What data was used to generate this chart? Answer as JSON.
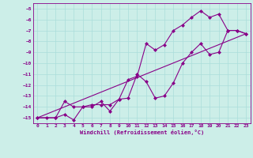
{
  "xlabel": "Windchill (Refroidissement éolien,°C)",
  "bg_color": "#cceee8",
  "grid_color": "#aaddda",
  "line_color": "#880088",
  "xlim": [
    -0.5,
    23.5
  ],
  "ylim": [
    -15.5,
    -4.5
  ],
  "xticks": [
    0,
    1,
    2,
    3,
    4,
    5,
    6,
    7,
    8,
    9,
    10,
    11,
    12,
    13,
    14,
    15,
    16,
    17,
    18,
    19,
    20,
    21,
    22,
    23
  ],
  "yticks": [
    -15,
    -14,
    -13,
    -12,
    -11,
    -10,
    -9,
    -8,
    -7,
    -6,
    -5
  ],
  "line1_x": [
    0,
    1,
    2,
    3,
    4,
    5,
    6,
    7,
    8,
    9,
    10,
    11,
    12,
    13,
    14,
    15,
    16,
    17,
    18,
    19,
    20,
    21,
    22,
    23
  ],
  "line1_y": [
    -15,
    -15,
    -15,
    -13.5,
    -14,
    -14,
    -14,
    -13.5,
    -14.4,
    -13.3,
    -11.5,
    -11.2,
    -8.2,
    -8.8,
    -8.3,
    -7.0,
    -6.5,
    -5.8,
    -5.2,
    -5.8,
    -5.5,
    -7.0,
    -7.0,
    -7.3
  ],
  "line2_x": [
    0,
    2,
    3,
    4,
    5,
    6,
    7,
    8,
    9,
    10,
    11,
    12,
    13,
    14,
    15,
    16,
    17,
    18,
    19,
    20,
    21,
    22,
    23
  ],
  "line2_y": [
    -15,
    -15,
    -14.7,
    -15.2,
    -14,
    -13.8,
    -13.8,
    -13.8,
    -13.3,
    -13.2,
    -11.0,
    -11.7,
    -13.2,
    -13.0,
    -11.8,
    -10.0,
    -9.0,
    -8.2,
    -9.2,
    -9.0,
    -7.0,
    -7.0,
    -7.3
  ],
  "line3_x": [
    0,
    23
  ],
  "line3_y": [
    -15,
    -7.3
  ]
}
